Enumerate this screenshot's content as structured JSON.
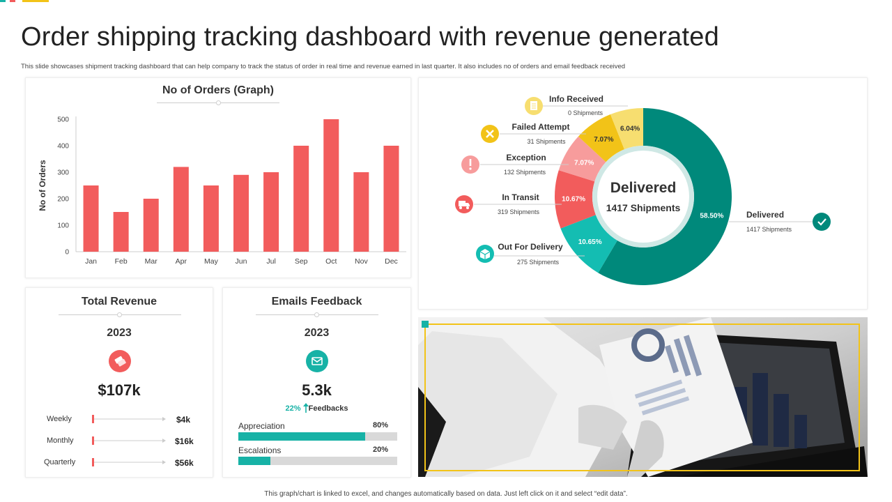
{
  "header": {
    "title": "Order shipping tracking dashboard with revenue generated",
    "subtitle": "This slide showcases shipment tracking dashboard that can help company to track the status of order in real time and revenue earned in last quarter. It also includes no of orders and email feedback received"
  },
  "orders_card": {
    "title": "No of Orders (Graph)"
  },
  "chart_data": {
    "type": "bar",
    "categories": [
      "Jan",
      "Feb",
      "Mar",
      "Apr",
      "May",
      "Jun",
      "Jul",
      "Sep",
      "Oct",
      "Nov",
      "Dec"
    ],
    "values": [
      250,
      150,
      200,
      320,
      250,
      290,
      300,
      400,
      500,
      300,
      400
    ],
    "ylabel": "No of Orders",
    "ylim": [
      0,
      500
    ],
    "yticks": [
      "0",
      "100",
      "200",
      "300",
      "400",
      "500"
    ],
    "bar_color": "#f25c5c"
  },
  "shipment_chart": {
    "center_title": "Delivered",
    "center_subtitle": "1417 Shipments",
    "segments": [
      {
        "name": "Delivered",
        "shipments": "1417 Shipments",
        "percent": 58.5,
        "label": "58.50%",
        "color": "#00897b",
        "icon": "check-icon"
      },
      {
        "name": "Out For Delivery",
        "shipments": "275 Shipments",
        "percent": 10.65,
        "label": "10.65%",
        "color": "#14bdb2",
        "icon": "box-icon"
      },
      {
        "name": "In Transit",
        "shipments": "319 Shipments",
        "percent": 10.67,
        "label": "10.67%",
        "color": "#f25c5c",
        "icon": "truck-icon"
      },
      {
        "name": "Exception",
        "shipments": "132 Shipments",
        "percent": 7.07,
        "label": "7.07%",
        "color": "#f79c9c",
        "icon": "exclamation-icon"
      },
      {
        "name": "Failed Attempt",
        "shipments": "31 Shipments",
        "percent": 7.07,
        "label": "7.07%",
        "color": "#f2c318",
        "icon": "x-icon"
      },
      {
        "name": "Info Received",
        "shipments": "0 Shipments",
        "percent": 6.04,
        "label": "6.04%",
        "color": "#f7de70",
        "icon": "document-icon"
      }
    ]
  },
  "revenue_card": {
    "title": "Total Revenue",
    "year": "2023",
    "total": "$107k",
    "icon": "money-icon",
    "rows": [
      {
        "label": "Weekly",
        "value": "$4k"
      },
      {
        "label": "Monthly",
        "value": "$16k"
      },
      {
        "label": "Quarterly",
        "value": "$56k"
      }
    ]
  },
  "email_card": {
    "title": "Emails Feedback",
    "year": "2023",
    "total": "5.3k",
    "icon": "envelope-icon",
    "growth": "22%",
    "growth_label": "Feedbacks",
    "bars": [
      {
        "label": "Appreciation",
        "value": "80%",
        "fraction": 0.8
      },
      {
        "label": "Escalations",
        "value": "20%",
        "fraction": 0.2
      }
    ]
  },
  "footer": {
    "note": "This graph/chart is linked to excel, and changes automatically based on data. Just left click on it and select “edit data”."
  },
  "colors": {
    "accent_red": "#f25c5c",
    "accent_teal": "#17b2a6",
    "accent_yellow": "#f2c318"
  }
}
